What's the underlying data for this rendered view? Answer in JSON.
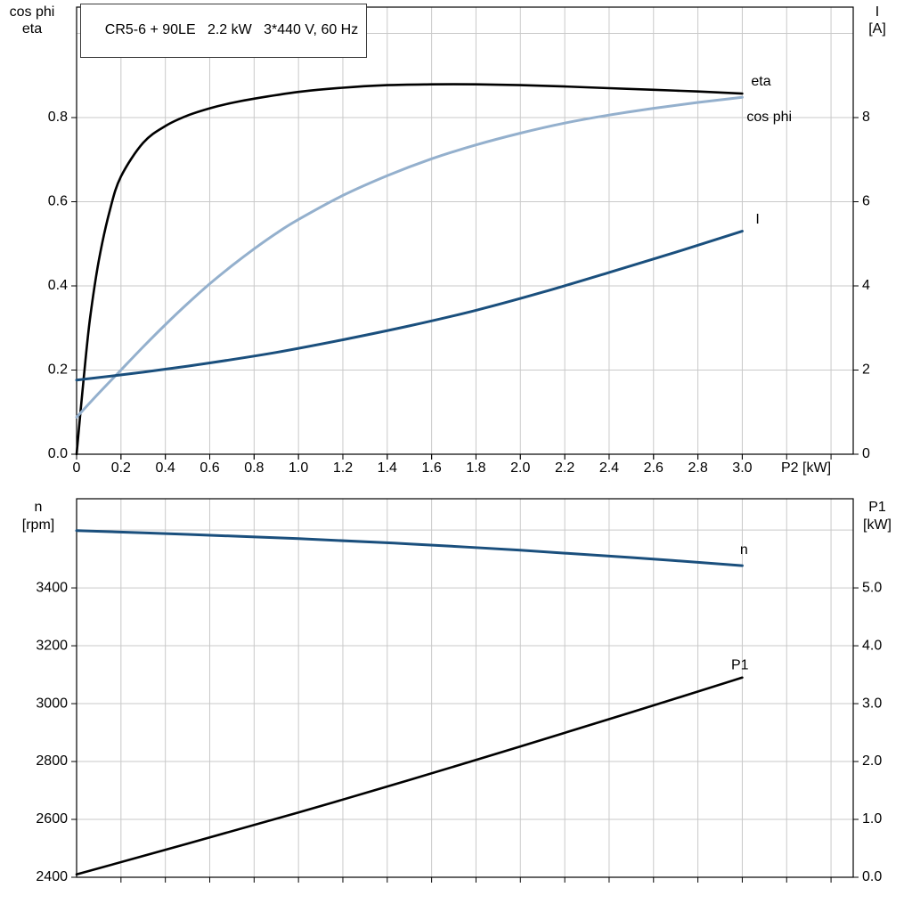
{
  "title_box": "CR5-6 + 90LE   2.2 kW   3*440 V, 60 Hz",
  "colors": {
    "grid": "#c9c9c9",
    "axis": "#000000",
    "dark_blue": "#1a4f7d",
    "light_blue": "#94b0cd",
    "black": "#000000"
  },
  "chart_data": [
    {
      "type": "line",
      "x_axis": {
        "title": "P2 [kW]",
        "lim": [
          0,
          3.5
        ],
        "grid_ticks": [
          0.2,
          0.4,
          0.6,
          0.8,
          1.0,
          1.2,
          1.4,
          1.6,
          1.8,
          2.0,
          2.2,
          2.4,
          2.6,
          2.8,
          3.0,
          3.2,
          3.4
        ],
        "labeled_ticks": [
          [
            0,
            "0"
          ],
          [
            0.2,
            "0.2"
          ],
          [
            0.4,
            "0.4"
          ],
          [
            0.6,
            "0.6"
          ],
          [
            0.8,
            "0.8"
          ],
          [
            1.0,
            "1.0"
          ],
          [
            1.2,
            "1.2"
          ],
          [
            1.4,
            "1.4"
          ],
          [
            1.6,
            "1.6"
          ],
          [
            1.8,
            "1.8"
          ],
          [
            2.0,
            "2.0"
          ],
          [
            2.2,
            "2.2"
          ],
          [
            2.4,
            "2.4"
          ],
          [
            2.6,
            "2.6"
          ],
          [
            2.8,
            "2.8"
          ],
          [
            3.0,
            "3.0"
          ]
        ]
      },
      "left_axis": {
        "title_lines": [
          "cos phi",
          "eta"
        ],
        "lim": [
          0,
          1.0625
        ],
        "grid_ticks": [
          0.2,
          0.4,
          0.6,
          0.8,
          1.0
        ],
        "labeled_ticks": [
          [
            0,
            "0.0"
          ],
          [
            0.2,
            "0.2"
          ],
          [
            0.4,
            "0.4"
          ],
          [
            0.6,
            "0.6"
          ],
          [
            0.8,
            "0.8"
          ]
        ]
      },
      "right_axis": {
        "title_lines": [
          "I",
          "[A]"
        ],
        "lim": [
          0,
          10.625
        ],
        "labeled_ticks": [
          [
            0,
            "0"
          ],
          [
            2,
            "2"
          ],
          [
            4,
            "4"
          ],
          [
            6,
            "6"
          ],
          [
            8,
            "8"
          ]
        ]
      },
      "series": [
        {
          "id": "eta",
          "label": "eta",
          "axis": "left",
          "color": "#000000",
          "width": 2.6,
          "label_at": [
            3.04,
            0.885
          ],
          "points": [
            [
              0,
              0
            ],
            [
              0.03,
              0.17
            ],
            [
              0.06,
              0.32
            ],
            [
              0.1,
              0.46
            ],
            [
              0.15,
              0.58
            ],
            [
              0.2,
              0.66
            ],
            [
              0.3,
              0.74
            ],
            [
              0.4,
              0.78
            ],
            [
              0.5,
              0.805
            ],
            [
              0.6,
              0.822
            ],
            [
              0.7,
              0.835
            ],
            [
              0.8,
              0.845
            ],
            [
              1.0,
              0.861
            ],
            [
              1.2,
              0.871
            ],
            [
              1.4,
              0.877
            ],
            [
              1.6,
              0.879
            ],
            [
              1.8,
              0.879
            ],
            [
              2.0,
              0.877
            ],
            [
              2.2,
              0.874
            ],
            [
              2.4,
              0.87
            ],
            [
              2.6,
              0.866
            ],
            [
              2.8,
              0.862
            ],
            [
              3.0,
              0.857
            ]
          ]
        },
        {
          "id": "cos-phi",
          "label": "cos phi",
          "axis": "left",
          "color": "#94b0cd",
          "width": 3,
          "label_at": [
            3.02,
            0.8
          ],
          "points": [
            [
              0,
              0.088
            ],
            [
              0.1,
              0.145
            ],
            [
              0.2,
              0.2
            ],
            [
              0.3,
              0.255
            ],
            [
              0.4,
              0.308
            ],
            [
              0.5,
              0.358
            ],
            [
              0.6,
              0.405
            ],
            [
              0.7,
              0.448
            ],
            [
              0.8,
              0.488
            ],
            [
              0.9,
              0.525
            ],
            [
              1.0,
              0.558
            ],
            [
              1.2,
              0.615
            ],
            [
              1.4,
              0.662
            ],
            [
              1.6,
              0.702
            ],
            [
              1.8,
              0.735
            ],
            [
              2.0,
              0.763
            ],
            [
              2.2,
              0.787
            ],
            [
              2.4,
              0.806
            ],
            [
              2.6,
              0.822
            ],
            [
              2.8,
              0.836
            ],
            [
              3.0,
              0.848
            ]
          ]
        },
        {
          "id": "current",
          "label": "I",
          "axis": "right",
          "color": "#1a4f7d",
          "width": 3,
          "label_at": [
            3.06,
            5.57
          ],
          "points": [
            [
              0,
              1.76
            ],
            [
              0.3,
              1.95
            ],
            [
              0.6,
              2.17
            ],
            [
              0.9,
              2.42
            ],
            [
              1.2,
              2.72
            ],
            [
              1.5,
              3.05
            ],
            [
              1.8,
              3.42
            ],
            [
              2.1,
              3.85
            ],
            [
              2.4,
              4.32
            ],
            [
              2.7,
              4.8
            ],
            [
              3.0,
              5.3
            ]
          ]
        }
      ]
    },
    {
      "type": "line",
      "x_axis": {
        "title": "",
        "lim": [
          0,
          3.5
        ],
        "grid_ticks": [
          0.2,
          0.4,
          0.6,
          0.8,
          1.0,
          1.2,
          1.4,
          1.6,
          1.8,
          2.0,
          2.2,
          2.4,
          2.6,
          2.8,
          3.0,
          3.2,
          3.4
        ],
        "labeled_ticks": []
      },
      "left_axis": {
        "title_lines": [
          "n",
          "[rpm]"
        ],
        "lim": [
          2400,
          3708
        ],
        "grid_ticks": [
          2600,
          2800,
          3000,
          3200,
          3400,
          3600
        ],
        "labeled_ticks": [
          [
            2400,
            "2400"
          ],
          [
            2600,
            "2600"
          ],
          [
            2800,
            "2800"
          ],
          [
            3000,
            "3000"
          ],
          [
            3200,
            "3200"
          ],
          [
            3400,
            "3400"
          ]
        ]
      },
      "right_axis": {
        "title_lines": [
          "P1",
          "[kW]"
        ],
        "lim": [
          0,
          6.54
        ],
        "labeled_ticks": [
          [
            0,
            "0.0"
          ],
          [
            1,
            "1.0"
          ],
          [
            2,
            "2.0"
          ],
          [
            3,
            "3.0"
          ],
          [
            4,
            "4.0"
          ],
          [
            5,
            "5.0"
          ]
        ]
      },
      "series": [
        {
          "id": "speed",
          "label": "n",
          "axis": "left",
          "color": "#1a4f7d",
          "width": 3,
          "label_at": [
            2.99,
            3530
          ],
          "points": [
            [
              0,
              3598
            ],
            [
              0.5,
              3585
            ],
            [
              1.0,
              3570
            ],
            [
              1.5,
              3552
            ],
            [
              2.0,
              3530
            ],
            [
              2.5,
              3505
            ],
            [
              3.0,
              3477
            ]
          ]
        },
        {
          "id": "input-power",
          "label": "P1",
          "axis": "right",
          "color": "#000000",
          "width": 2.6,
          "label_at": [
            2.95,
            3.66
          ],
          "points": [
            [
              0,
              0.05
            ],
            [
              0.5,
              0.58
            ],
            [
              1.0,
              1.12
            ],
            [
              1.5,
              1.68
            ],
            [
              2.0,
              2.26
            ],
            [
              2.5,
              2.85
            ],
            [
              3.0,
              3.45
            ]
          ]
        }
      ]
    }
  ]
}
